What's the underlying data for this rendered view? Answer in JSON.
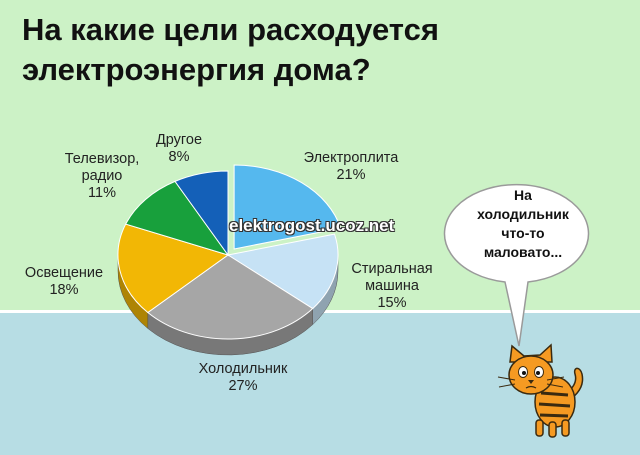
{
  "title": {
    "line1": "На какие цели расходуется",
    "line2": "электроэнергия дома?"
  },
  "watermark": "elektrogost.ucoz.net",
  "bubble": {
    "line1": "На",
    "line2": "холодильник",
    "line3": "что-то",
    "line4": "маловато..."
  },
  "labels": {
    "electroplita": {
      "name": "Электроплита",
      "value": "21%"
    },
    "stiralnaya": {
      "line1": "Стиральная",
      "line2": "машина",
      "value": "15%"
    },
    "holodilnik": {
      "name": "Холодильник",
      "value": "27%"
    },
    "osveshchenie": {
      "name": "Освещение",
      "value": "18%"
    },
    "televizor": {
      "line1": "Телевизор,",
      "line2": "радио",
      "value": "11%"
    },
    "drugoe": {
      "name": "Другое",
      "value": "8%"
    }
  },
  "chart_data": {
    "type": "pie",
    "title": "На какие цели расходуется электроэнергия дома?",
    "categories": [
      "Электроплита",
      "Стиральная машина",
      "Холодильник",
      "Освещение",
      "Телевизор, радио",
      "Другое"
    ],
    "values": [
      21,
      15,
      27,
      18,
      11,
      8
    ],
    "colors": [
      "#55b8ee",
      "#c6e2f5",
      "#a6a6a6",
      "#f2b705",
      "#18a03c",
      "#1460b8"
    ],
    "exploded": "Электроплита",
    "legend": "none"
  }
}
